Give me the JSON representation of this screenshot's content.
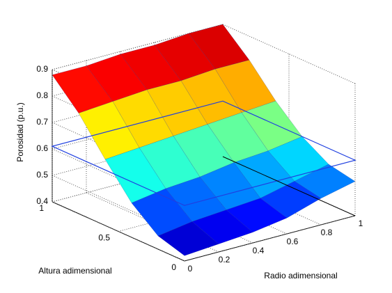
{
  "chart_data": {
    "type": "surface",
    "xlabel": "Radio adimensional",
    "ylabel": "Altura adimensional",
    "zlabel": "Porosidad (p.u.)",
    "x": [
      0,
      0.2,
      0.4,
      0.6,
      0.8,
      1
    ],
    "y": [
      0,
      0.2,
      0.4,
      0.6,
      0.8,
      1
    ],
    "z": [
      [
        0.42,
        0.43,
        0.44,
        0.46,
        0.5,
        0.53
      ],
      [
        0.45,
        0.47,
        0.48,
        0.49,
        0.52,
        0.55
      ],
      [
        0.53,
        0.55,
        0.56,
        0.58,
        0.59,
        0.61
      ],
      [
        0.65,
        0.66,
        0.67,
        0.68,
        0.69,
        0.7
      ],
      [
        0.78,
        0.79,
        0.8,
        0.8,
        0.81,
        0.81
      ],
      [
        0.88,
        0.88,
        0.89,
        0.89,
        0.9,
        0.9
      ]
    ],
    "xlim": [
      0,
      1
    ],
    "ylim": [
      0,
      1
    ],
    "zlim": [
      0.4,
      0.9
    ],
    "xticks": [
      0,
      0.2,
      0.4,
      0.6,
      0.8,
      1
    ],
    "yticks": [
      0,
      0.5,
      1
    ],
    "zticks": [
      0.4,
      0.5,
      0.6,
      0.7,
      0.8,
      0.9
    ],
    "grid": true,
    "colormap": "jet",
    "plane_level": 0.61,
    "plane_color": "#2040e0"
  }
}
